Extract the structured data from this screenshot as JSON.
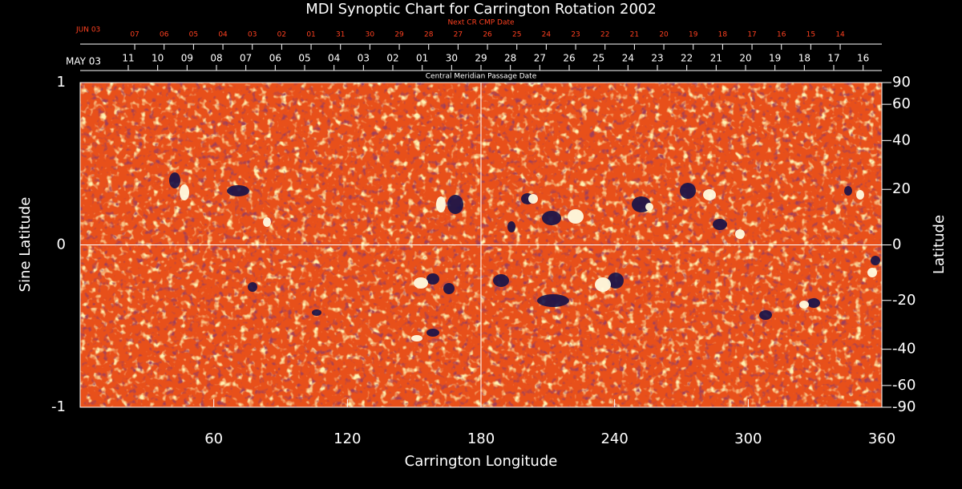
{
  "chart_data": {
    "type": "synoptic-map",
    "title": "MDI Synoptic Chart for Carrington Rotation 2002",
    "xlabel": "Carrington Longitude",
    "ylabel": "Sine Latitude",
    "y2label": "Latitude",
    "xlim": [
      0,
      360
    ],
    "xticks": [
      60,
      120,
      180,
      240,
      300,
      360
    ],
    "ylim": [
      -1,
      1
    ],
    "yticks": [
      -1,
      0,
      1
    ],
    "y2scale": "sine",
    "y2ticks": [
      90,
      60,
      40,
      20,
      0,
      -20,
      -40,
      -60,
      -90
    ],
    "gridx": [
      180
    ],
    "gridy": [
      0
    ],
    "cmp_title": "Central Meridian Passage Date",
    "cmp_start_label": "MAY 03",
    "cmp_ticks": [
      {
        "value": 21.6,
        "label": "11"
      },
      {
        "value": 34.8,
        "label": "10"
      },
      {
        "value": 48.0,
        "label": "09"
      },
      {
        "value": 61.2,
        "label": "08"
      },
      {
        "value": 74.4,
        "label": "07"
      },
      {
        "value": 87.6,
        "label": "06"
      },
      {
        "value": 100.8,
        "label": "05"
      },
      {
        "value": 114.0,
        "label": "04"
      },
      {
        "value": 127.2,
        "label": "03"
      },
      {
        "value": 140.4,
        "label": "02"
      },
      {
        "value": 153.6,
        "label": "01"
      },
      {
        "value": 166.8,
        "label": "30"
      },
      {
        "value": 180.0,
        "label": "29"
      },
      {
        "value": 193.2,
        "label": "28"
      },
      {
        "value": 206.4,
        "label": "27"
      },
      {
        "value": 219.6,
        "label": "26"
      },
      {
        "value": 232.8,
        "label": "25"
      },
      {
        "value": 246.0,
        "label": "24"
      },
      {
        "value": 259.2,
        "label": "23"
      },
      {
        "value": 272.4,
        "label": "22"
      },
      {
        "value": 285.6,
        "label": "21"
      },
      {
        "value": 298.8,
        "label": "20"
      },
      {
        "value": 312.0,
        "label": "19"
      },
      {
        "value": 325.2,
        "label": "18"
      },
      {
        "value": 338.4,
        "label": "17"
      },
      {
        "value": 351.6,
        "label": "16"
      }
    ],
    "next_cmp_title": "Next CR CMP Date",
    "next_cmp_start_label": "JUN 03",
    "next_cmp_color": "#ff4020",
    "next_cmp_ticks": [
      {
        "value": 24.5,
        "label": "07"
      },
      {
        "value": 37.7,
        "label": "06"
      },
      {
        "value": 50.9,
        "label": "05"
      },
      {
        "value": 64.1,
        "label": "04"
      },
      {
        "value": 77.3,
        "label": "03"
      },
      {
        "value": 90.5,
        "label": "02"
      },
      {
        "value": 103.7,
        "label": "01"
      },
      {
        "value": 116.9,
        "label": "31"
      },
      {
        "value": 130.1,
        "label": "30"
      },
      {
        "value": 143.3,
        "label": "29"
      },
      {
        "value": 156.5,
        "label": "28"
      },
      {
        "value": 169.7,
        "label": "27"
      },
      {
        "value": 182.9,
        "label": "26"
      },
      {
        "value": 196.1,
        "label": "25"
      },
      {
        "value": 209.3,
        "label": "24"
      },
      {
        "value": 222.5,
        "label": "23"
      },
      {
        "value": 235.7,
        "label": "22"
      },
      {
        "value": 248.9,
        "label": "21"
      },
      {
        "value": 262.1,
        "label": "20"
      },
      {
        "value": 275.3,
        "label": "19"
      },
      {
        "value": 288.5,
        "label": "18"
      },
      {
        "value": 301.7,
        "label": "17"
      },
      {
        "value": 314.9,
        "label": "16"
      },
      {
        "value": 328.1,
        "label": "15"
      },
      {
        "value": 341.3,
        "label": "14"
      }
    ]
  }
}
